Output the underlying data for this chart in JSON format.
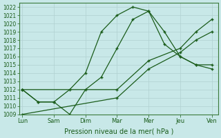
{
  "background_color": "#c8e8e8",
  "grid_color": "#b0d0d0",
  "line_color": "#1a5c1a",
  "marker_color": "#1a5c1a",
  "xlabel": "Pression niveau de la mer( hPa )",
  "xtick_labels": [
    "Lun",
    "Sam",
    "Dim",
    "Mar",
    "Mer",
    "Jeu",
    "Ven"
  ],
  "ylim": [
    1009,
    1022.5
  ],
  "yticks": [
    1009,
    1010,
    1011,
    1012,
    1013,
    1014,
    1015,
    1016,
    1017,
    1018,
    1019,
    1020,
    1021,
    1022
  ],
  "xlim": [
    -0.1,
    6.2
  ],
  "xtick_positions": [
    0,
    1,
    2,
    3,
    4,
    5,
    6
  ],
  "series1_x": [
    0,
    0.5,
    1,
    1.5,
    2,
    2.5,
    3,
    3.5,
    4,
    4.5,
    5,
    5.5,
    6
  ],
  "series1_y": [
    1012,
    1010.5,
    1010.5,
    1012,
    1014,
    1019,
    1021,
    1022,
    1021.5,
    1019,
    1016,
    1015,
    1015
  ],
  "series2_x": [
    0,
    0.5,
    1,
    1.5,
    2,
    2.5,
    3,
    3.5,
    4,
    4.5,
    5,
    5.5,
    6
  ],
  "series2_y": [
    1012,
    1010.5,
    1010.5,
    1009,
    1012,
    1013.5,
    1017,
    1020.5,
    1021.5,
    1017.5,
    1016,
    1015,
    1014.5
  ],
  "series3_x": [
    0,
    3,
    4,
    5,
    5.5,
    6
  ],
  "series3_y": [
    1012,
    1012,
    1015.5,
    1017,
    1019,
    1020.5
  ],
  "series4_x": [
    0,
    3,
    4,
    5,
    5.5,
    6
  ],
  "series4_y": [
    1009,
    1011,
    1014.5,
    1016.5,
    1018,
    1019
  ]
}
